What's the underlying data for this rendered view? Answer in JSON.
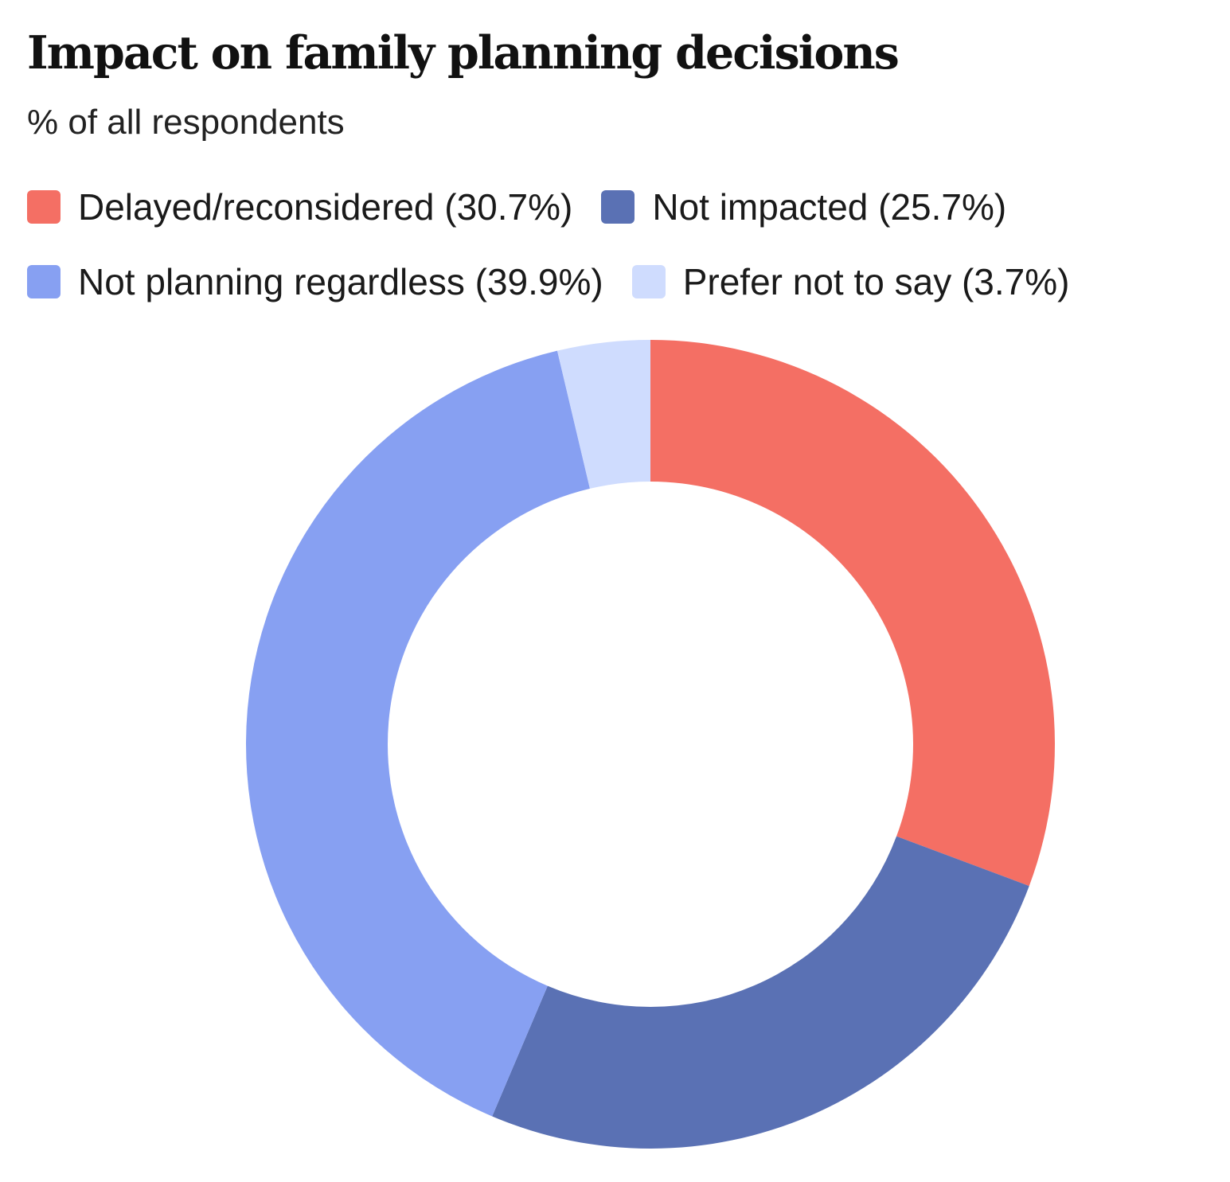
{
  "chart_data": {
    "type": "pie",
    "variant": "donut",
    "title": "Impact on family planning decisions",
    "subtitle": "% of all respondents",
    "legend_position": "top",
    "categories": [
      "Delayed/reconsidered (30.7%)",
      "Not impacted (25.7%)",
      "Not planning regardless (39.9%)",
      "Prefer not to say (3.7%)"
    ],
    "values": [
      30.7,
      25.7,
      39.9,
      3.7
    ],
    "colors": [
      "#f46f64",
      "#5a71b4",
      "#87a0f2",
      "#cfdcfe"
    ]
  }
}
